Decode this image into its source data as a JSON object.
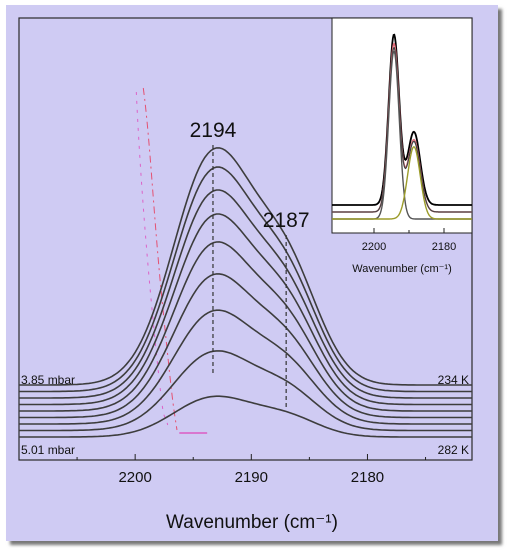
{
  "colors": {
    "background": "#cfcbf3",
    "trace": "#3d3d3d",
    "inset_envelope": "#000000",
    "inset_sum": "#e06a78",
    "inset_component_a": "#555555",
    "inset_component_b": "#9c9c2a",
    "annotation_line": "#333333",
    "artifact_red": "#e83c5a",
    "artifact_magenta": "#e040b8"
  },
  "chart_data": [
    {
      "type": "line",
      "xlabel": "Wavenumber (cm⁻¹)",
      "ylabel": "",
      "xlim": [
        2210,
        2171
      ],
      "x_reversed": true,
      "x_ticks": [
        2200,
        2190,
        2180
      ],
      "grid": false,
      "peaks": [
        {
          "label": "2194",
          "x": 2193.3
        },
        {
          "label": "2187",
          "x": 2187.0
        }
      ],
      "corner_labels": {
        "top_left": "3.85 mbar",
        "bottom_left": "5.01 mbar",
        "top_right": "234 K",
        "bottom_right": "282 K"
      },
      "series_count": 9,
      "series_amplitudes": [
        1.0,
        0.92,
        0.83,
        0.74,
        0.64,
        0.53,
        0.41,
        0.28,
        0.14
      ],
      "components": [
        {
          "center": 2193.3,
          "width": 3.4
        },
        {
          "center": 2186.9,
          "width": 2.8
        }
      ],
      "component_ratio": 0.47
    },
    {
      "type": "line",
      "xlabel": "Wavenumber (cm⁻¹)",
      "ylabel": "",
      "xlim": [
        2212,
        2172
      ],
      "x_reversed": true,
      "x_ticks": [
        2200,
        2180
      ],
      "grid": false,
      "components": [
        {
          "center": 2194.3,
          "width": 1.5
        },
        {
          "center": 2188.6,
          "width": 1.8
        }
      ],
      "component_ratio": 0.43
    }
  ]
}
